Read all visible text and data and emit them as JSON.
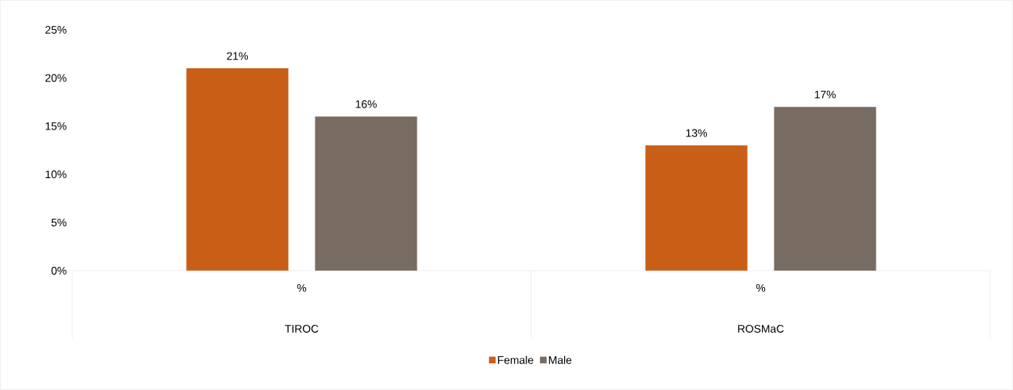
{
  "chart_data": {
    "type": "bar",
    "categories": [
      "%",
      "%"
    ],
    "series": [
      {
        "name": "Female",
        "color": "#c95f16",
        "values": [
          21,
          13
        ],
        "value_labels": [
          "21%",
          "13%"
        ]
      },
      {
        "name": "Male",
        "color": "#786c62",
        "values": [
          16,
          17
        ],
        "value_labels": [
          "16%",
          "17%"
        ]
      }
    ],
    "ylim": [
      0,
      25
    ],
    "yticks": [
      {
        "value": 0,
        "label": "0%"
      },
      {
        "value": 5,
        "label": "5%"
      },
      {
        "value": 10,
        "label": "10%"
      },
      {
        "value": 15,
        "label": "15%"
      },
      {
        "value": 20,
        "label": "20%"
      },
      {
        "value": 25,
        "label": "25%"
      }
    ],
    "annotations": [
      "TIROC",
      "ROSMaC"
    ],
    "legend": "bottom"
  }
}
